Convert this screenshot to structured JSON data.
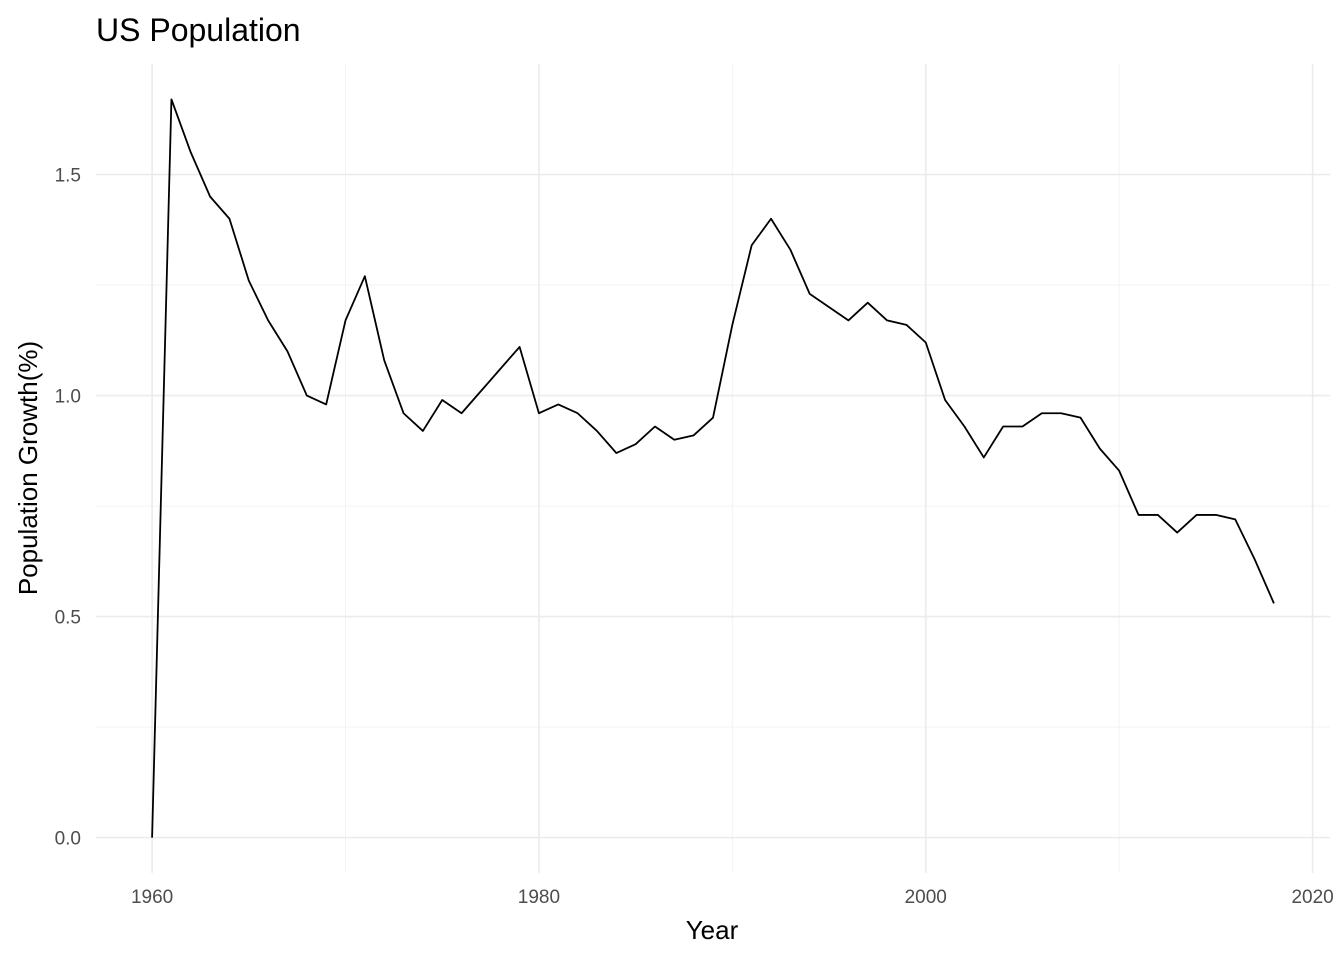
{
  "chart_data": {
    "type": "line",
    "title": "US Population",
    "xlabel": "Year",
    "ylabel": "Population Growth(%)",
    "xlim": [
      1957.1,
      2020.9
    ],
    "ylim": [
      -0.08,
      1.75
    ],
    "x_ticks": [
      1960,
      1980,
      2000,
      2020
    ],
    "x_tick_labels": [
      "1960",
      "1980",
      "2000",
      "2020"
    ],
    "x_minor_ticks": [
      1970,
      1990,
      2010
    ],
    "y_ticks": [
      0.0,
      0.5,
      1.0,
      1.5
    ],
    "y_tick_labels": [
      "0.0",
      "0.5",
      "1.0",
      "1.5"
    ],
    "y_minor_ticks": [
      0.25,
      0.75,
      1.25
    ],
    "grid": true,
    "legend": "none",
    "series": [
      {
        "color": "#000000",
        "x": [
          1960,
          1961,
          1962,
          1963,
          1964,
          1965,
          1966,
          1967,
          1968,
          1969,
          1970,
          1971,
          1972,
          1973,
          1974,
          1975,
          1976,
          1977,
          1978,
          1979,
          1980,
          1981,
          1982,
          1983,
          1984,
          1985,
          1986,
          1987,
          1988,
          1989,
          1990,
          1991,
          1992,
          1993,
          1994,
          1995,
          1996,
          1997,
          1998,
          1999,
          2000,
          2001,
          2002,
          2003,
          2004,
          2005,
          2006,
          2007,
          2008,
          2009,
          2010,
          2011,
          2012,
          2013,
          2014,
          2015,
          2016,
          2017,
          2018
        ],
        "y": [
          0.0,
          1.67,
          1.55,
          1.45,
          1.4,
          1.26,
          1.17,
          1.1,
          1.0,
          0.98,
          1.17,
          1.27,
          1.08,
          0.96,
          0.92,
          0.99,
          0.96,
          1.01,
          1.06,
          1.11,
          0.96,
          0.98,
          0.96,
          0.92,
          0.87,
          0.89,
          0.93,
          0.9,
          0.91,
          0.95,
          1.16,
          1.34,
          1.4,
          1.33,
          1.23,
          1.2,
          1.17,
          1.21,
          1.17,
          1.16,
          1.12,
          0.99,
          0.93,
          0.86,
          0.93,
          0.93,
          0.96,
          0.96,
          0.95,
          0.88,
          0.83,
          0.73,
          0.73,
          0.69,
          0.73,
          0.73,
          0.72,
          0.63,
          0.53
        ]
      }
    ]
  }
}
